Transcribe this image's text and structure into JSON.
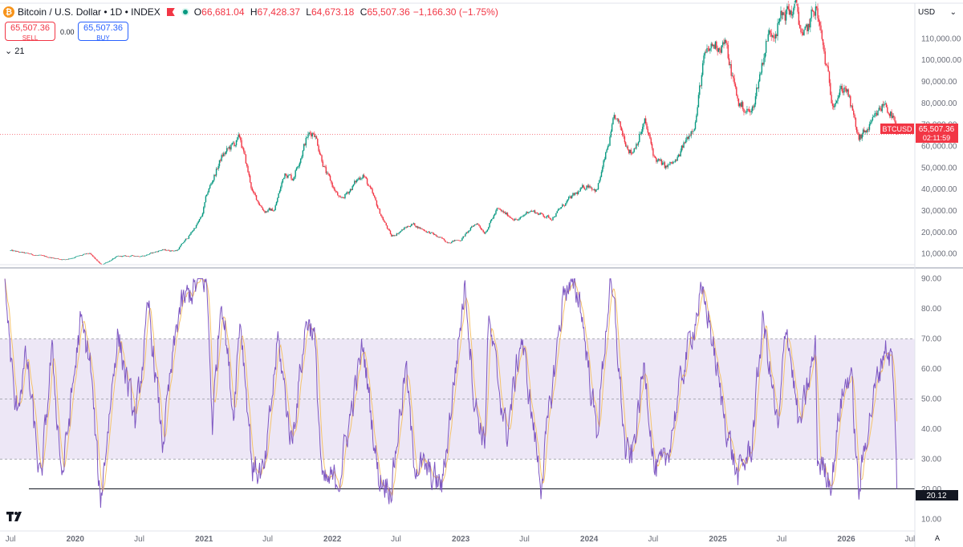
{
  "header": {
    "coin_glyph": "₿",
    "symbol": "Bitcoin / U.S. Dollar • 1D • INDEX",
    "ohlc": [
      {
        "k": "O",
        "v": "66,681.04"
      },
      {
        "k": "H",
        "v": "67,428.37"
      },
      {
        "k": "L",
        "v": "64,673.18"
      },
      {
        "k": "C",
        "v": "65,507.36"
      }
    ],
    "change": "−1,166.30 (−1.75%)"
  },
  "trade": {
    "sell_price": "65,507.36",
    "sell_label": "SELL",
    "spread": "0.00",
    "buy_price": "65,507.36",
    "buy_label": "BUY"
  },
  "indicator_length": "21",
  "currency": "USD",
  "chevron": "⌄",
  "price_badge": {
    "symbol": "BTCUSD",
    "price": "65,507.36",
    "countdown": "02:11:59"
  },
  "rsi_badge": "20.12",
  "autoscale_label": "A",
  "colors": {
    "up": "#089981",
    "down": "#f23645",
    "rsi_line": "#7e57c2",
    "rsi_ma": "#f5c26b",
    "rsi_band": "#ede7f6"
  },
  "chart_data": [
    {
      "type": "candlestick",
      "ylim": [
        5000,
        125000
      ],
      "y_ticks": [
        "110,000.00",
        "100,000.00",
        "90,000.00",
        "80,000.00",
        "70,000.00",
        "60,000.00",
        "50,000.00",
        "40,000.00",
        "30,000.00",
        "20,000.00",
        "10,000.00"
      ],
      "y_tick_values": [
        110000,
        100000,
        90000,
        80000,
        70000,
        60000,
        50000,
        40000,
        30000,
        20000,
        10000
      ],
      "last_price": 65507.36,
      "close_path": [
        [
          "2019-07-01",
          11500
        ],
        [
          "2019-09-01",
          9700
        ],
        [
          "2019-12-01",
          7300
        ],
        [
          "2020-02-10",
          10200
        ],
        [
          "2020-03-15",
          4900
        ],
        [
          "2020-05-01",
          8800
        ],
        [
          "2020-07-15",
          9200
        ],
        [
          "2020-09-01",
          11800
        ],
        [
          "2020-10-15",
          11500
        ],
        [
          "2020-11-20",
          18500
        ],
        [
          "2020-12-25",
          27000
        ],
        [
          "2021-01-10",
          38000
        ],
        [
          "2021-02-20",
          55000
        ],
        [
          "2021-03-15",
          59000
        ],
        [
          "2021-04-14",
          63500
        ],
        [
          "2021-05-20",
          38000
        ],
        [
          "2021-06-22",
          30000
        ],
        [
          "2021-07-20",
          30500
        ],
        [
          "2021-08-20",
          48500
        ],
        [
          "2021-09-10",
          45000
        ],
        [
          "2021-10-20",
          64000
        ],
        [
          "2021-11-10",
          67500
        ],
        [
          "2021-12-15",
          47000
        ],
        [
          "2022-01-24",
          34500
        ],
        [
          "2022-03-29",
          47500
        ],
        [
          "2022-05-15",
          29500
        ],
        [
          "2022-06-18",
          18000
        ],
        [
          "2022-08-15",
          24000
        ],
        [
          "2022-10-15",
          19000
        ],
        [
          "2022-11-21",
          15700
        ],
        [
          "2022-12-31",
          16500
        ],
        [
          "2023-02-15",
          24500
        ],
        [
          "2023-03-10",
          20000
        ],
        [
          "2023-04-14",
          30500
        ],
        [
          "2023-06-15",
          25500
        ],
        [
          "2023-07-15",
          30500
        ],
        [
          "2023-09-15",
          26500
        ],
        [
          "2023-10-31",
          34500
        ],
        [
          "2023-12-31",
          42500
        ],
        [
          "2024-01-23",
          39500
        ],
        [
          "2024-02-28",
          62500
        ],
        [
          "2024-03-14",
          73000
        ],
        [
          "2024-05-01",
          57000
        ],
        [
          "2024-06-07",
          71000
        ],
        [
          "2024-07-05",
          54500
        ],
        [
          "2024-08-05",
          50000
        ],
        [
          "2024-09-06",
          53000
        ],
        [
          "2024-10-29",
          72500
        ],
        [
          "2024-11-22",
          99500
        ],
        [
          "2024-12-17",
          106500
        ],
        [
          "2025-01-20",
          108500
        ],
        [
          "2025-02-28",
          80000
        ],
        [
          "2025-04-07",
          75000
        ],
        [
          "2025-05-22",
          111000
        ],
        [
          "2025-07-14",
          122500
        ],
        [
          "2025-08-14",
          123500
        ],
        [
          "2025-09-01",
          108500
        ],
        [
          "2025-10-06",
          125000
        ],
        [
          "2025-11-21",
          82000
        ],
        [
          "2025-12-31",
          88000
        ],
        [
          "2026-02-05",
          63000
        ],
        [
          "2026-03-15",
          70000
        ],
        [
          "2026-04-20",
          80500
        ],
        [
          "2026-05-12",
          74000
        ],
        [
          "2026-05-26",
          65507
        ]
      ]
    },
    {
      "type": "line",
      "ylim": [
        8,
        92
      ],
      "y_ticks": [
        "90.00",
        "80.00",
        "70.00",
        "60.00",
        "50.00",
        "40.00",
        "30.00",
        "20.00",
        "10.00"
      ],
      "y_tick_values": [
        90,
        80,
        70,
        60,
        50,
        40,
        30,
        20,
        10
      ],
      "bands": {
        "upper": 70,
        "middle": 50,
        "lower": 30
      },
      "reference_level": 20.12,
      "last_value": 20.12,
      "x_ticks": [
        {
          "label": "Jul",
          "date": "2019-07-01",
          "bold": false
        },
        {
          "label": "2020",
          "date": "2020-01-01",
          "bold": true
        },
        {
          "label": "Jul",
          "date": "2020-07-01",
          "bold": false
        },
        {
          "label": "2021",
          "date": "2021-01-01",
          "bold": true
        },
        {
          "label": "Jul",
          "date": "2021-07-01",
          "bold": false
        },
        {
          "label": "2022",
          "date": "2022-01-01",
          "bold": true
        },
        {
          "label": "Jul",
          "date": "2022-07-01",
          "bold": false
        },
        {
          "label": "2023",
          "date": "2023-01-01",
          "bold": true
        },
        {
          "label": "Jul",
          "date": "2023-07-01",
          "bold": false
        },
        {
          "label": "2024",
          "date": "2024-01-01",
          "bold": true
        },
        {
          "label": "Jul",
          "date": "2024-07-01",
          "bold": false
        },
        {
          "label": "2025",
          "date": "2025-01-01",
          "bold": true
        },
        {
          "label": "Jul",
          "date": "2025-07-01",
          "bold": false
        },
        {
          "label": "2026",
          "date": "2026-01-01",
          "bold": true
        },
        {
          "label": "Jul",
          "date": "2026-07-01",
          "bold": false
        }
      ],
      "anchors": [
        [
          "2019-06-15",
          88
        ],
        [
          "2019-07-15",
          45
        ],
        [
          "2019-08-15",
          64
        ],
        [
          "2019-09-25",
          21
        ],
        [
          "2019-10-26",
          66
        ],
        [
          "2019-11-25",
          24
        ],
        [
          "2020-01-15",
          75
        ],
        [
          "2020-02-12",
          63
        ],
        [
          "2020-03-12",
          15
        ],
        [
          "2020-04-30",
          72
        ],
        [
          "2020-06-20",
          42
        ],
        [
          "2020-07-28",
          80
        ],
        [
          "2020-09-05",
          35
        ],
        [
          "2020-10-21",
          79
        ],
        [
          "2020-11-20",
          85
        ],
        [
          "2020-12-16",
          88
        ],
        [
          "2021-01-08",
          90
        ],
        [
          "2021-01-25",
          42
        ],
        [
          "2021-02-20",
          86
        ],
        [
          "2021-03-25",
          45
        ],
        [
          "2021-04-14",
          78
        ],
        [
          "2021-05-19",
          27
        ],
        [
          "2021-06-22",
          25
        ],
        [
          "2021-07-30",
          70
        ],
        [
          "2021-09-07",
          35
        ],
        [
          "2021-10-20",
          77
        ],
        [
          "2021-11-10",
          72
        ],
        [
          "2021-12-04",
          21
        ],
        [
          "2022-01-21",
          24
        ],
        [
          "2022-03-29",
          68
        ],
        [
          "2022-05-12",
          24
        ],
        [
          "2022-06-18",
          21
        ],
        [
          "2022-07-29",
          61
        ],
        [
          "2022-08-19",
          30
        ],
        [
          "2022-11-09",
          21
        ],
        [
          "2023-01-14",
          89
        ],
        [
          "2023-02-08",
          50
        ],
        [
          "2023-03-10",
          35
        ],
        [
          "2023-03-20",
          76
        ],
        [
          "2023-05-12",
          38
        ],
        [
          "2023-06-22",
          71
        ],
        [
          "2023-08-17",
          22
        ],
        [
          "2023-10-23",
          88
        ],
        [
          "2023-12-05",
          84
        ],
        [
          "2024-01-23",
          38
        ],
        [
          "2024-02-28",
          87
        ],
        [
          "2024-03-14",
          78
        ],
        [
          "2024-04-13",
          32
        ],
        [
          "2024-05-01",
          30
        ],
        [
          "2024-06-07",
          62
        ],
        [
          "2024-07-05",
          26
        ],
        [
          "2024-08-05",
          28
        ],
        [
          "2024-09-25",
          60
        ],
        [
          "2024-11-12",
          84
        ],
        [
          "2024-12-05",
          78
        ],
        [
          "2025-01-10",
          50
        ],
        [
          "2025-02-25",
          24
        ],
        [
          "2025-04-07",
          34
        ],
        [
          "2025-05-09",
          77
        ],
        [
          "2025-06-22",
          38
        ],
        [
          "2025-07-14",
          77
        ],
        [
          "2025-08-20",
          40
        ],
        [
          "2025-10-06",
          67
        ],
        [
          "2025-10-11",
          30
        ],
        [
          "2025-11-21",
          23
        ],
        [
          "2025-12-15",
          49
        ],
        [
          "2026-01-14",
          60
        ],
        [
          "2026-02-05",
          18
        ],
        [
          "2026-03-01",
          40
        ],
        [
          "2026-04-20",
          68
        ],
        [
          "2026-05-12",
          63
        ],
        [
          "2026-05-26",
          20
        ]
      ]
    }
  ]
}
